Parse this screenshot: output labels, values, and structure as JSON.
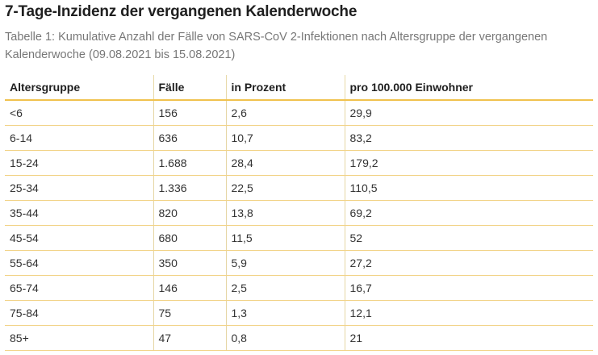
{
  "title": "7-Tage-Inzidenz der vergangenen Kalenderwoche",
  "caption": "Tabelle 1: Kumulative Anzahl der Fälle von SARS-CoV 2-Infektionen nach Altersgruppe der vergangenen Kalenderwoche (09.08.2021 bis 15.08.2021)",
  "table": {
    "headers": [
      "Altersgruppe",
      "Fälle",
      "in Prozent",
      "pro 100.000 Einwohner"
    ],
    "rows": [
      [
        "<6",
        "156",
        "2,6",
        "29,9"
      ],
      [
        "6-14",
        "636",
        "10,7",
        "83,2"
      ],
      [
        "15-24",
        "1.688",
        "28,4",
        "179,2"
      ],
      [
        "25-34",
        "1.336",
        "22,5",
        "110,5"
      ],
      [
        "35-44",
        "820",
        "13,8",
        "69,2"
      ],
      [
        "45-54",
        "680",
        "11,5",
        "52"
      ],
      [
        "55-64",
        "350",
        "5,9",
        "27,2"
      ],
      [
        "65-74",
        "146",
        "2,5",
        "16,7"
      ],
      [
        "75-84",
        "75",
        "1,3",
        "12,1"
      ],
      [
        "85+",
        "47",
        "0,8",
        "21"
      ]
    ]
  },
  "colors": {
    "accent_border": "#f0c24e",
    "row_border": "#f2d48a",
    "caption_text": "#777777"
  }
}
